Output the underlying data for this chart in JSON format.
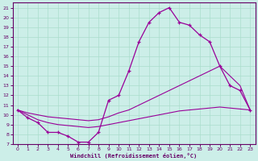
{
  "xlabel": "Windchill (Refroidissement éolien,°C)",
  "bg_color": "#cceee8",
  "grid_color": "#aaddcc",
  "line_color": "#990099",
  "spine_color": "#660066",
  "xlim": [
    -0.5,
    23.5
  ],
  "ylim": [
    7,
    21.5
  ],
  "yticks": [
    7,
    8,
    9,
    10,
    11,
    12,
    13,
    14,
    15,
    16,
    17,
    18,
    19,
    20,
    21
  ],
  "xticks": [
    0,
    1,
    2,
    3,
    4,
    5,
    6,
    7,
    8,
    9,
    10,
    11,
    12,
    13,
    14,
    15,
    16,
    17,
    18,
    19,
    20,
    21,
    22,
    23
  ],
  "line1_x": [
    0,
    1,
    2,
    3,
    4,
    5,
    6,
    7,
    8,
    9,
    10,
    11,
    12,
    13,
    14,
    15,
    16,
    17,
    18,
    19,
    20,
    21,
    22,
    23
  ],
  "line1_y": [
    10.5,
    9.7,
    9.2,
    8.2,
    8.2,
    7.8,
    7.2,
    7.2,
    8.2,
    11.5,
    12.0,
    14.5,
    17.5,
    19.5,
    20.5,
    21.0,
    19.5,
    19.2,
    18.2,
    17.5,
    15.0,
    13.0,
    12.5,
    10.5
  ],
  "line2_x": [
    0,
    1,
    2,
    3,
    4,
    5,
    6,
    7,
    8,
    9,
    10,
    11,
    12,
    13,
    14,
    15,
    16,
    17,
    18,
    19,
    20,
    21,
    22,
    23
  ],
  "line2_y": [
    10.5,
    10.2,
    10.0,
    9.8,
    9.7,
    9.6,
    9.5,
    9.4,
    9.5,
    9.8,
    10.2,
    10.5,
    11.0,
    11.5,
    12.0,
    12.5,
    13.0,
    13.5,
    14.0,
    14.5,
    15.0,
    14.0,
    13.0,
    10.5
  ],
  "line3_x": [
    0,
    1,
    2,
    3,
    4,
    5,
    6,
    7,
    8,
    9,
    10,
    11,
    12,
    13,
    14,
    15,
    16,
    17,
    18,
    19,
    20,
    21,
    22,
    23
  ],
  "line3_y": [
    10.5,
    10.0,
    9.5,
    9.2,
    9.0,
    8.9,
    8.8,
    8.7,
    8.8,
    9.0,
    9.2,
    9.4,
    9.6,
    9.8,
    10.0,
    10.2,
    10.4,
    10.5,
    10.6,
    10.7,
    10.8,
    10.7,
    10.6,
    10.5
  ]
}
